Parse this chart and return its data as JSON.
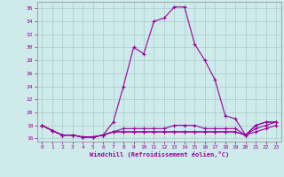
{
  "xlabel": "Windchill (Refroidissement éolien,°C)",
  "background_color": "#ceeaea",
  "grid_color": "#aacccc",
  "line_color": "#990099",
  "xlim": [
    -0.5,
    23.5
  ],
  "ylim": [
    15.5,
    37.0
  ],
  "yticks": [
    16,
    18,
    20,
    22,
    24,
    26,
    28,
    30,
    32,
    34,
    36
  ],
  "xticks": [
    0,
    1,
    2,
    3,
    4,
    5,
    6,
    7,
    8,
    9,
    10,
    11,
    12,
    13,
    14,
    15,
    16,
    17,
    18,
    19,
    20,
    21,
    22,
    23
  ],
  "line1_x": [
    0,
    1,
    2,
    3,
    4,
    5,
    6,
    7,
    8,
    9,
    10,
    11,
    12,
    13,
    14,
    15,
    16,
    17,
    18,
    19,
    20,
    21,
    22,
    23
  ],
  "line1_y": [
    18.0,
    17.2,
    16.5,
    16.5,
    16.2,
    16.2,
    16.5,
    18.5,
    24.0,
    30.0,
    29.0,
    34.0,
    34.5,
    36.2,
    36.2,
    30.5,
    28.0,
    25.0,
    19.5,
    19.0,
    16.5,
    18.0,
    18.5,
    18.5
  ],
  "line2_x": [
    0,
    1,
    2,
    3,
    4,
    5,
    6,
    7,
    8,
    9,
    10,
    11,
    12,
    13,
    14,
    15,
    16,
    17,
    18,
    19,
    20,
    21,
    22,
    23
  ],
  "line2_y": [
    18.0,
    17.2,
    16.5,
    16.5,
    16.2,
    16.2,
    16.5,
    17.0,
    17.5,
    17.5,
    17.5,
    17.5,
    17.5,
    18.0,
    18.0,
    18.0,
    17.5,
    17.5,
    17.5,
    17.5,
    16.5,
    18.0,
    18.5,
    18.5
  ],
  "line3_x": [
    0,
    1,
    2,
    3,
    4,
    5,
    6,
    7,
    8,
    9,
    10,
    11,
    12,
    13,
    14,
    15,
    16,
    17,
    18,
    19,
    20,
    21,
    22,
    23
  ],
  "line3_y": [
    18.0,
    17.2,
    16.5,
    16.5,
    16.2,
    16.2,
    16.5,
    17.0,
    17.0,
    17.0,
    17.0,
    17.0,
    17.0,
    17.0,
    17.0,
    17.0,
    17.0,
    17.0,
    17.0,
    17.0,
    16.5,
    17.5,
    18.0,
    18.5
  ],
  "line4_x": [
    0,
    1,
    2,
    3,
    4,
    5,
    6,
    7,
    8,
    9,
    10,
    11,
    12,
    13,
    14,
    15,
    16,
    17,
    18,
    19,
    20,
    21,
    22,
    23
  ],
  "line4_y": [
    18.0,
    17.2,
    16.5,
    16.5,
    16.2,
    16.2,
    16.5,
    17.0,
    17.0,
    17.0,
    17.0,
    17.0,
    17.0,
    17.0,
    17.0,
    17.0,
    17.0,
    17.0,
    17.0,
    17.0,
    16.5,
    17.0,
    17.5,
    18.0
  ]
}
